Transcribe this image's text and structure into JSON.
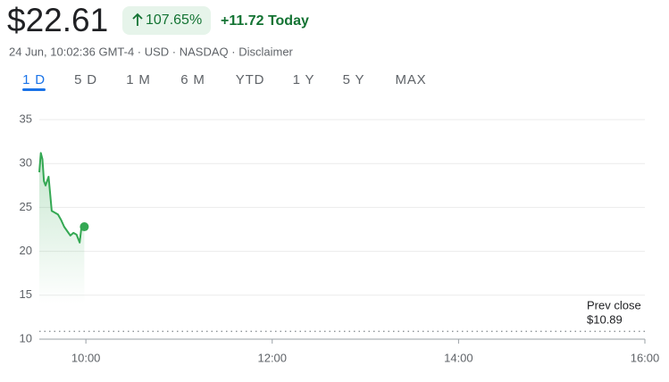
{
  "header": {
    "price": "$22.61",
    "change_percent": "107.65%",
    "change_today": "+11.72 Today",
    "meta": "24 Jun, 10:02:36 GMT-4 · USD · NASDAQ · Disclaimer"
  },
  "tabs": [
    "1 D",
    "5 D",
    "1 M",
    "6 M",
    "YTD",
    "1 Y",
    "5 Y",
    "MAX"
  ],
  "selected_tab": 0,
  "chart_data": {
    "type": "line",
    "x": [
      570,
      571,
      572,
      573,
      574,
      575,
      576,
      577,
      578,
      580,
      582,
      584,
      586,
      588,
      590,
      592,
      594,
      596,
      597,
      598,
      599
    ],
    "series": [
      {
        "color": "#34a853",
        "values": [
          29,
          31.2,
          30.5,
          28,
          27.5,
          28,
          28.5,
          26.5,
          24.6,
          24.4,
          24.2,
          23.6,
          22.8,
          22.3,
          21.8,
          22.1,
          21.9,
          21.0,
          22.5,
          22.7,
          22.8
        ]
      }
    ],
    "xlim": [
      570,
      960
    ],
    "xticks": [
      {
        "value": 600,
        "label": "10:00"
      },
      {
        "value": 720,
        "label": "12:00"
      },
      {
        "value": 840,
        "label": "14:00"
      },
      {
        "value": 960,
        "label": "16:00"
      }
    ],
    "ylim": [
      10,
      35
    ],
    "yticks": [
      10,
      15,
      20,
      25,
      30,
      35
    ],
    "grid": true,
    "prev_close_text": "Prev close",
    "prev_close": {
      "value": 10.89,
      "label": "$10.89"
    }
  }
}
